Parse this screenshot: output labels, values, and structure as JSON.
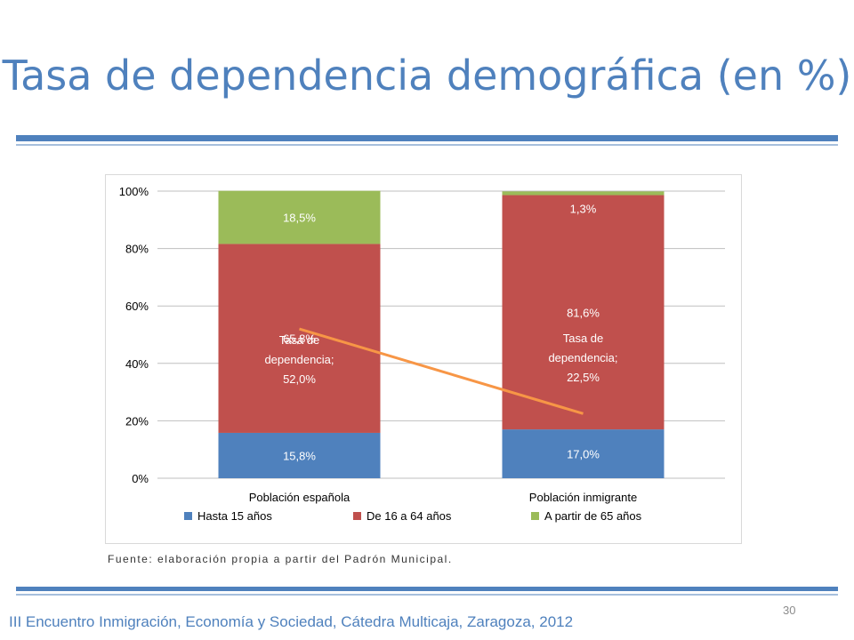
{
  "slide": {
    "title": "Tasa de dependencia demográfica (en %)",
    "source": "Fuente: elaboración propia a partir del Padrón Municipal.",
    "page_number": "30",
    "footer": "III Encuentro Inmigración, Economía y Sociedad, Cátedra Multicaja, Zaragoza, 2012"
  },
  "colors": {
    "title": "#4f81bd",
    "rule_dark": "#4f81bd",
    "rule_light": "#a6bfdd"
  },
  "chart_data": {
    "type": "bar",
    "stacked": true,
    "categories": [
      "Población española",
      "Población inmigrante"
    ],
    "series": [
      {
        "name": "Hasta 15 años",
        "color": "#4f81bd",
        "values": [
          15.8,
          17.0
        ],
        "labels": [
          "15,8%",
          "17,0%"
        ]
      },
      {
        "name": "De 16 a 64 años",
        "color": "#c0504d",
        "values": [
          65.8,
          81.6
        ],
        "labels": [
          "65,8%",
          "81,6%"
        ]
      },
      {
        "name": "A partir de 65 años",
        "color": "#9bbb59",
        "values": [
          18.5,
          1.3
        ],
        "labels": [
          "18,5%",
          "1,3%"
        ]
      }
    ],
    "overlay_line": {
      "name": "Tasa de dependencia",
      "color": "#f79646",
      "values": [
        52.0,
        22.5
      ],
      "labels": [
        [
          "Tasa de",
          "dependencia;",
          "52,0%"
        ],
        [
          "Tasa de",
          "dependencia;",
          "22,5%"
        ]
      ]
    },
    "ylim": [
      0,
      100
    ],
    "yticks": [
      0,
      20,
      40,
      60,
      80,
      100
    ],
    "ytick_labels": [
      "0%",
      "20%",
      "40%",
      "60%",
      "80%",
      "100%"
    ],
    "grid": true,
    "legend_position": "bottom"
  }
}
